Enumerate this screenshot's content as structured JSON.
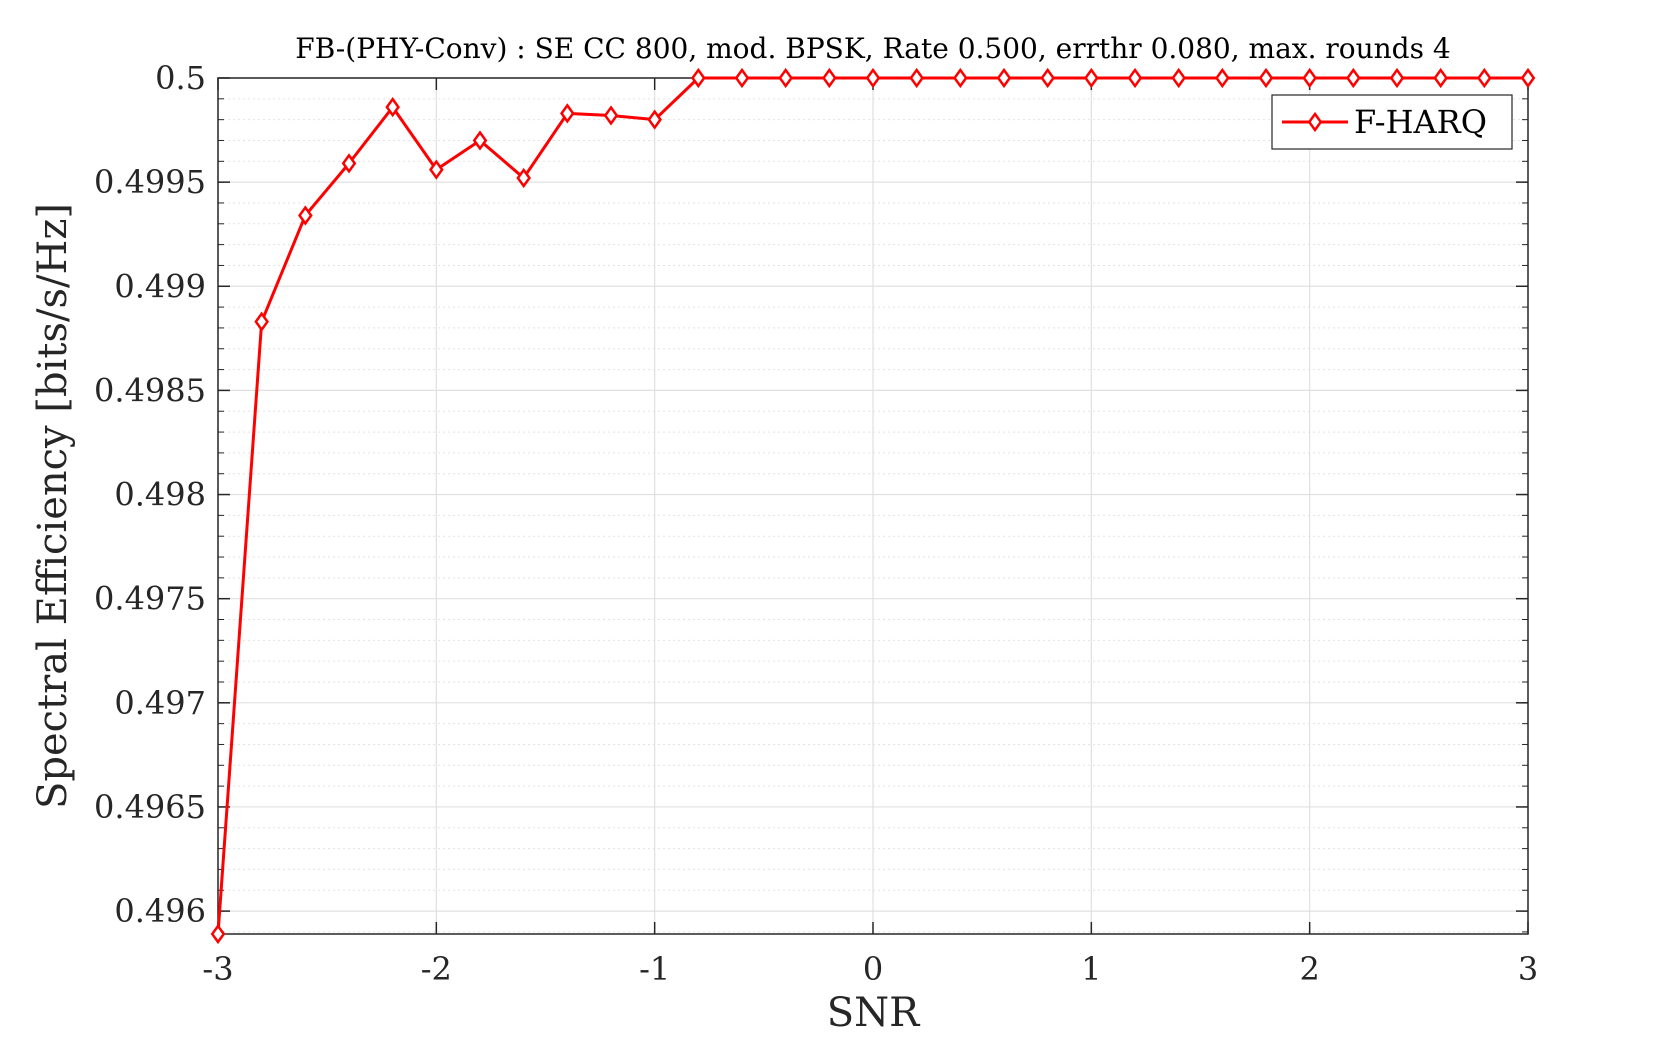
{
  "chart_data": {
    "type": "line",
    "title": "FB-(PHY-Conv) : SE CC 800, mod. BPSK, Rate 0.500, errthr 0.080, max. rounds 4",
    "xlabel": "SNR",
    "ylabel": "Spectral Efficiency [bits/s/Hz]",
    "xlim": [
      -3,
      3
    ],
    "ylim": [
      0.49589,
      0.5
    ],
    "xticks": [
      -3,
      -2,
      -1,
      0,
      1,
      2,
      3
    ],
    "xtick_labels": [
      "-3",
      "-2",
      "-1",
      "0",
      "1",
      "2",
      "3"
    ],
    "yticks": [
      0.496,
      0.4965,
      0.497,
      0.4975,
      0.498,
      0.4985,
      0.499,
      0.4995,
      0.5
    ],
    "ytick_labels": [
      "0.496",
      "0.4965",
      "0.497",
      "0.4975",
      "0.498",
      "0.4985",
      "0.499",
      "0.4995",
      "0.5"
    ],
    "grid": true,
    "minor_grid": true,
    "legend_position": "top-right",
    "series": [
      {
        "name": "F-HARQ",
        "color": "#ff0000",
        "marker": "diamond",
        "x": [
          -3,
          -2.8,
          -2.6,
          -2.4,
          -2.2,
          -2,
          -1.8,
          -1.6,
          -1.4,
          -1.2,
          -1,
          -0.8,
          -0.6,
          -0.4,
          -0.2,
          0,
          0.2,
          0.4,
          0.6,
          0.8,
          1,
          1.2,
          1.4,
          1.6,
          1.8,
          2,
          2.2,
          2.4,
          2.6,
          2.8,
          3
        ],
        "values": [
          0.49589,
          0.49883,
          0.49934,
          0.49959,
          0.49986,
          0.49956,
          0.4997,
          0.49952,
          0.49983,
          0.49982,
          0.4998,
          0.5,
          0.5,
          0.5,
          0.5,
          0.5,
          0.5,
          0.5,
          0.5,
          0.5,
          0.5,
          0.5,
          0.5,
          0.5,
          0.5,
          0.5,
          0.5,
          0.5,
          0.5,
          0.5,
          0.5
        ]
      }
    ]
  }
}
